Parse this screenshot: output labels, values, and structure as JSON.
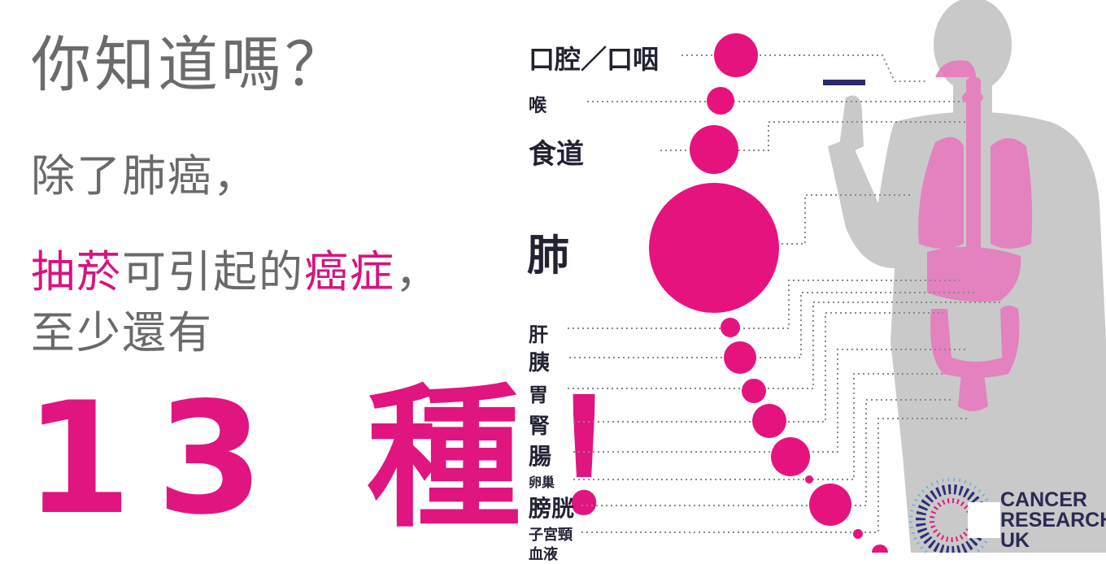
{
  "headline": {
    "title": "你知道嗎？",
    "line1": "除了肺癌，",
    "line2": {
      "part1": "抽菸",
      "part2": "可引起的",
      "part3": "癌症",
      "part4": "，"
    },
    "line3": "至少還有",
    "big": "13 種！"
  },
  "chart_data": {
    "type": "infographic",
    "labels": [
      "口腔／口咽",
      "喉",
      "食道",
      "肺",
      "肝",
      "胰",
      "胃",
      "腎",
      "腸",
      "卵巢",
      "膀胱",
      "子宮頸",
      "血液"
    ]
  },
  "colors": {
    "accent": "#e0157f",
    "body": "#c9c9c9",
    "organs": "#e67bbf",
    "text_gray": "#6a6a6a"
  },
  "logo": {
    "line1": "CANCER",
    "line2": "RESEARCH",
    "line3": "UK"
  }
}
